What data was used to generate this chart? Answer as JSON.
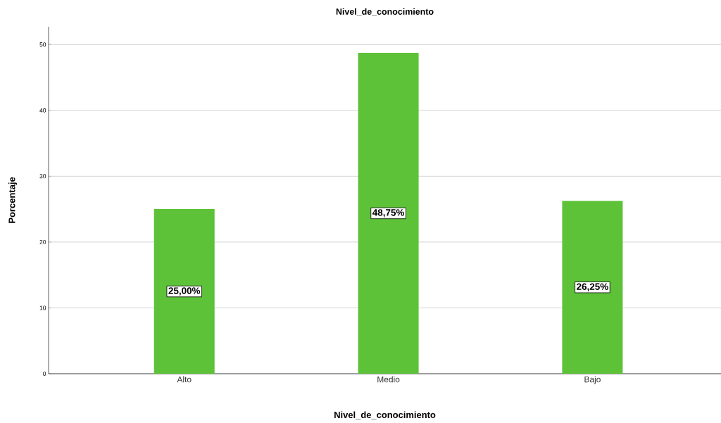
{
  "chart_data": {
    "type": "bar",
    "title": "Nivel_de_conocimiento",
    "xlabel": "Nivel_de_conocimiento",
    "ylabel": "Porcentaje",
    "categories": [
      "Alto",
      "Medio",
      "Bajo"
    ],
    "values": [
      25,
      48.75,
      26.25
    ],
    "value_labels": [
      "25,00%",
      "48,75%",
      "26,25%"
    ],
    "color": "#5dc238",
    "ylim": [
      0,
      52.7
    ],
    "yticks": [
      0,
      10,
      20,
      30,
      40,
      50
    ],
    "grid": "y"
  }
}
